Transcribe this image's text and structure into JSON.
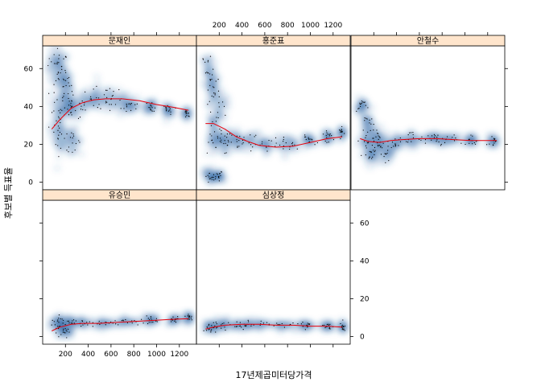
{
  "chart_data": {
    "type": "scatter",
    "style": "smoothScatter lattice panels with loess fit line",
    "xlabel": "17년제곱미터당가격",
    "ylabel": "후보별 득표율",
    "xlim": [
      0,
      1350
    ],
    "ylim": [
      -4,
      72
    ],
    "x_ticks": [
      200,
      400,
      600,
      800,
      1000,
      1200
    ],
    "y_ticks": [
      0,
      20,
      40,
      60
    ],
    "grid": false,
    "colors": {
      "strip": "#ffe5cc",
      "density": "#1f5e9e",
      "fit": "#e8000b",
      "point": "#000000"
    },
    "panels": [
      {
        "name": "문재인",
        "fit": [
          [
            80,
            28
          ],
          [
            150,
            33
          ],
          [
            250,
            39
          ],
          [
            350,
            42
          ],
          [
            450,
            43.5
          ],
          [
            550,
            44
          ],
          [
            700,
            44
          ],
          [
            850,
            43
          ],
          [
            1000,
            41
          ],
          [
            1150,
            39.5
          ],
          [
            1280,
            38
          ]
        ],
        "clusters": [
          [
            110,
            62,
            45,
            8
          ],
          [
            160,
            58,
            40,
            8
          ],
          [
            200,
            52,
            40,
            6
          ],
          [
            130,
            35,
            50,
            10
          ],
          [
            200,
            42,
            60,
            6
          ],
          [
            260,
            40,
            60,
            5
          ],
          [
            160,
            24,
            45,
            7
          ],
          [
            260,
            22,
            50,
            4
          ],
          [
            380,
            42,
            90,
            5
          ],
          [
            500,
            44,
            80,
            5
          ],
          [
            650,
            42,
            90,
            4
          ],
          [
            780,
            41,
            60,
            3
          ],
          [
            950,
            40,
            40,
            2
          ],
          [
            1100,
            38,
            30,
            2
          ],
          [
            1260,
            36,
            20,
            2
          ]
        ]
      },
      {
        "name": "홍준표",
        "fit": [
          [
            80,
            31
          ],
          [
            150,
            31
          ],
          [
            250,
            28
          ],
          [
            350,
            24
          ],
          [
            450,
            21.5
          ],
          [
            550,
            19.5
          ],
          [
            700,
            18.5
          ],
          [
            850,
            19
          ],
          [
            1000,
            21
          ],
          [
            1150,
            23
          ],
          [
            1280,
            24
          ]
        ],
        "clusters": [
          [
            110,
            58,
            45,
            9
          ],
          [
            150,
            50,
            40,
            8
          ],
          [
            200,
            40,
            50,
            7
          ],
          [
            140,
            26,
            45,
            8
          ],
          [
            200,
            22,
            60,
            5
          ],
          [
            300,
            22,
            60,
            4
          ],
          [
            120,
            3,
            40,
            3
          ],
          [
            200,
            3,
            30,
            2
          ],
          [
            450,
            22,
            80,
            3
          ],
          [
            600,
            20,
            90,
            3
          ],
          [
            800,
            20,
            70,
            3
          ],
          [
            1000,
            22,
            50,
            2
          ],
          [
            1150,
            24,
            30,
            2
          ],
          [
            1280,
            26,
            20,
            2
          ]
        ]
      },
      {
        "name": "안철수",
        "fit": [
          [
            80,
            23
          ],
          [
            150,
            21.5
          ],
          [
            250,
            21
          ],
          [
            350,
            22
          ],
          [
            450,
            22.5
          ],
          [
            600,
            23
          ],
          [
            750,
            23
          ],
          [
            900,
            22.5
          ],
          [
            1050,
            22
          ],
          [
            1200,
            22
          ],
          [
            1280,
            22
          ]
        ],
        "clusters": [
          [
            90,
            40,
            30,
            3
          ],
          [
            150,
            30,
            40,
            5
          ],
          [
            150,
            22,
            50,
            5
          ],
          [
            180,
            14,
            50,
            4
          ],
          [
            250,
            22,
            60,
            4
          ],
          [
            300,
            15,
            50,
            3
          ],
          [
            400,
            22,
            80,
            3
          ],
          [
            550,
            23,
            90,
            3
          ],
          [
            700,
            23,
            80,
            2
          ],
          [
            850,
            22,
            60,
            2
          ],
          [
            1050,
            22,
            40,
            2
          ],
          [
            1250,
            22,
            25,
            2
          ]
        ]
      },
      {
        "name": "유승민",
        "fit": [
          [
            80,
            3
          ],
          [
            150,
            5
          ],
          [
            250,
            6.5
          ],
          [
            350,
            7
          ],
          [
            500,
            7
          ],
          [
            650,
            7.5
          ],
          [
            800,
            8
          ],
          [
            950,
            8.5
          ],
          [
            1100,
            9
          ],
          [
            1280,
            9.5
          ]
        ],
        "clusters": [
          [
            130,
            7,
            50,
            3
          ],
          [
            220,
            8,
            70,
            2
          ],
          [
            200,
            3,
            50,
            2
          ],
          [
            360,
            7,
            80,
            2
          ],
          [
            550,
            7,
            90,
            1.5
          ],
          [
            750,
            8,
            70,
            1.5
          ],
          [
            950,
            9,
            50,
            1.5
          ],
          [
            1150,
            9,
            40,
            1.5
          ],
          [
            1280,
            10,
            20,
            1.5
          ]
        ]
      },
      {
        "name": "심상정",
        "fit": [
          [
            80,
            4
          ],
          [
            150,
            5
          ],
          [
            250,
            6
          ],
          [
            400,
            6.5
          ],
          [
            550,
            6.5
          ],
          [
            700,
            6
          ],
          [
            850,
            6
          ],
          [
            1000,
            5.5
          ],
          [
            1150,
            5.5
          ],
          [
            1280,
            5
          ]
        ],
        "clusters": [
          [
            130,
            5,
            50,
            2.5
          ],
          [
            230,
            6,
            70,
            2
          ],
          [
            380,
            6,
            80,
            1.5
          ],
          [
            550,
            6.5,
            90,
            1.5
          ],
          [
            750,
            6,
            80,
            1.5
          ],
          [
            950,
            6,
            60,
            1.5
          ],
          [
            1150,
            5.5,
            40,
            1.5
          ],
          [
            1280,
            5,
            20,
            1.5
          ]
        ]
      }
    ]
  }
}
